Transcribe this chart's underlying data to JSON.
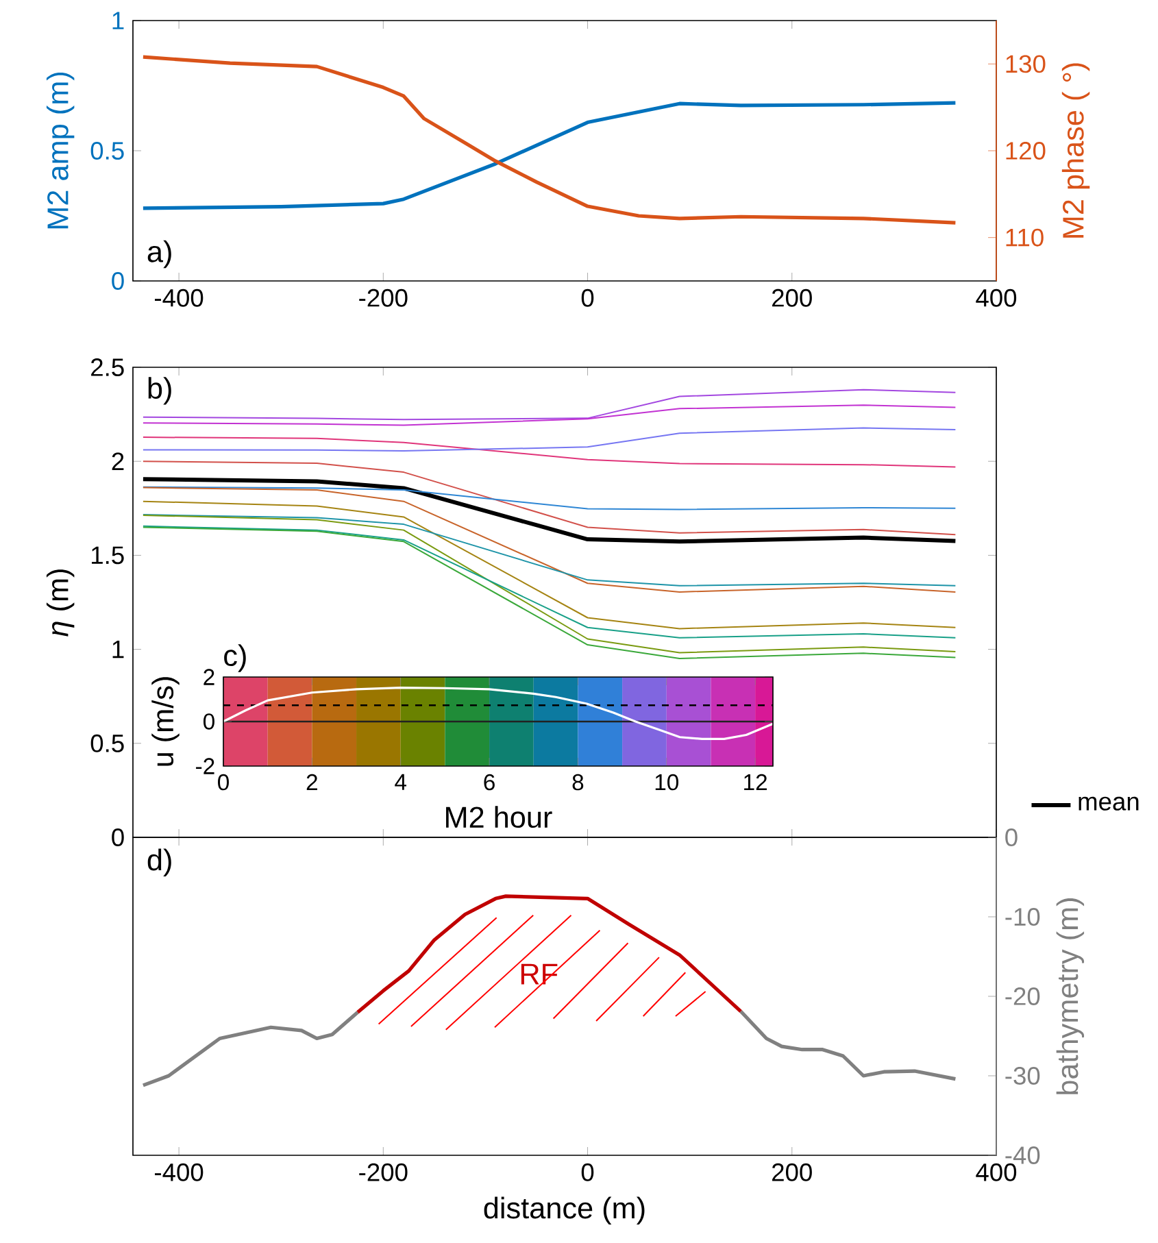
{
  "chart_data": [
    {
      "type": "line",
      "title": "a)",
      "ylabel": "M2 amp (m)",
      "y2label": "M2 phase ( °)",
      "xlim": [
        -445,
        400
      ],
      "xticks": [
        -400,
        -200,
        0,
        200,
        400
      ],
      "ylim": [
        0,
        1
      ],
      "yticks": [
        0,
        0.5,
        1
      ],
      "y2lim": [
        105,
        135
      ],
      "y2ticks": [
        110,
        120,
        130
      ],
      "series": [
        {
          "color": "#0072BD",
          "x": [
            -435,
            -300,
            -200,
            -180,
            -90,
            0,
            90,
            150,
            270,
            360
          ],
          "values": [
            0.279,
            0.285,
            0.297,
            0.314,
            0.45,
            0.609,
            0.681,
            0.674,
            0.677,
            0.684
          ]
        },
        {
          "color": "#D95319",
          "axis": "y2",
          "x": [
            -435,
            -350,
            -265,
            -200,
            -180,
            -160,
            -120,
            -90,
            -50,
            0,
            50,
            90,
            150,
            270,
            360
          ],
          "values": [
            130.8,
            130.1,
            129.7,
            127.3,
            126.3,
            123.7,
            120.9,
            118.8,
            116.4,
            113.6,
            112.5,
            112.2,
            112.4,
            112.2,
            111.7
          ]
        }
      ]
    },
    {
      "type": "line",
      "title": "b)",
      "ylabel": "*η* (m)",
      "xlim": [
        -445,
        400
      ],
      "xticks": [
        -400,
        -200,
        0,
        200,
        400
      ],
      "ylim": [
        0,
        2.5
      ],
      "yticks": [
        0,
        0.5,
        1,
        1.5,
        2,
        2.5
      ],
      "tick_labels": "y",
      "legend": "right",
      "x": [
        -435,
        -265,
        -180,
        0,
        90,
        270,
        360
      ],
      "series": [
        {
          "color": "#A347E0",
          "values": [
            2.235,
            2.228,
            2.222,
            2.229,
            2.345,
            2.381,
            2.366
          ]
        },
        {
          "color": "#C232D2",
          "values": [
            2.204,
            2.198,
            2.192,
            2.226,
            2.28,
            2.299,
            2.287
          ]
        },
        {
          "color": "#E0357A",
          "values": [
            2.128,
            2.122,
            2.1,
            2.009,
            1.988,
            1.982,
            1.97
          ]
        },
        {
          "color": "#7676F2",
          "values": [
            2.061,
            2.06,
            2.055,
            2.076,
            2.149,
            2.177,
            2.168
          ]
        },
        {
          "color": "#D2504A",
          "values": [
            2.0,
            1.99,
            1.942,
            1.649,
            1.619,
            1.637,
            1.61
          ]
        },
        {
          "name": "mean",
          "color": "#000000",
          "values": [
            1.905,
            1.893,
            1.857,
            1.585,
            1.573,
            1.594,
            1.576
          ]
        },
        {
          "color": "#2E86D4",
          "values": [
            1.863,
            1.858,
            1.848,
            1.747,
            1.744,
            1.753,
            1.75
          ]
        },
        {
          "color": "#C8642A",
          "values": [
            1.86,
            1.848,
            1.787,
            1.351,
            1.305,
            1.335,
            1.305
          ]
        },
        {
          "color": "#A58412",
          "values": [
            1.787,
            1.762,
            1.704,
            1.168,
            1.11,
            1.14,
            1.116
          ]
        },
        {
          "color": "#1E94A8",
          "values": [
            1.716,
            1.7,
            1.665,
            1.369,
            1.338,
            1.351,
            1.338
          ]
        },
        {
          "color": "#7A9A10",
          "values": [
            1.713,
            1.689,
            1.634,
            1.055,
            0.982,
            1.012,
            0.988
          ]
        },
        {
          "color": "#18A088",
          "values": [
            1.655,
            1.634,
            1.582,
            1.116,
            1.061,
            1.082,
            1.061
          ]
        },
        {
          "color": "#3AA83A",
          "values": [
            1.649,
            1.628,
            1.573,
            1.024,
            0.951,
            0.979,
            0.957
          ]
        }
      ]
    },
    {
      "type": "line",
      "title": "c)",
      "xlabel": "M2 hour",
      "ylabel": "u (m/s)",
      "xlim": [
        0,
        12.4
      ],
      "xticks": [
        0,
        2,
        4,
        6,
        8,
        10,
        12
      ],
      "ylim": [
        -2,
        2
      ],
      "yticks": [
        -2,
        0,
        2
      ],
      "bands": [
        {
          "axis": "x",
          "from": 0,
          "to": 1,
          "color": "#DD4468"
        },
        {
          "axis": "x",
          "from": 1,
          "to": 2,
          "color": "#D25A38"
        },
        {
          "axis": "x",
          "from": 2,
          "to": 3,
          "color": "#B86A10"
        },
        {
          "axis": "x",
          "from": 3,
          "to": 4,
          "color": "#9A7600"
        },
        {
          "axis": "x",
          "from": 4,
          "to": 5,
          "color": "#6A8200"
        },
        {
          "axis": "x",
          "from": 5,
          "to": 6,
          "color": "#208C38"
        },
        {
          "axis": "x",
          "from": 6,
          "to": 7,
          "color": "#0E8070"
        },
        {
          "axis": "x",
          "from": 7,
          "to": 8,
          "color": "#0C7AA0"
        },
        {
          "axis": "x",
          "from": 8,
          "to": 9,
          "color": "#3080D8"
        },
        {
          "axis": "x",
          "from": 9,
          "to": 10,
          "color": "#8066E0"
        },
        {
          "axis": "x",
          "from": 10,
          "to": 11,
          "color": "#A850D4"
        },
        {
          "axis": "x",
          "from": 11,
          "to": 12,
          "color": "#C830B4"
        },
        {
          "axis": "x",
          "from": 12,
          "to": 12.4,
          "color": "#D81896"
        }
      ],
      "ref_lines": [
        {
          "axis": "y",
          "value": 0,
          "color": "#222222",
          "line_style": "solid"
        },
        {
          "axis": "y",
          "value": 0.73,
          "color": "#000000",
          "line_style": "dashed"
        }
      ],
      "series": [
        {
          "color": "#FFFFFF",
          "x": [
            0,
            0.5,
            1,
            2,
            3,
            4,
            5,
            6,
            7,
            7.5,
            8.2,
            8.8,
            9.3,
            9.8,
            10.3,
            10.8,
            11.3,
            11.8,
            12.4
          ],
          "values": [
            0,
            0.5,
            0.95,
            1.3,
            1.45,
            1.52,
            1.5,
            1.45,
            1.25,
            1.1,
            0.8,
            0.4,
            0,
            -0.35,
            -0.7,
            -0.78,
            -0.78,
            -0.6,
            -0.1
          ]
        }
      ]
    },
    {
      "type": "line",
      "title": "d)",
      "xlabel": "distance (m)",
      "y2label": "bathymetry (m)",
      "xlim": [
        -445,
        400
      ],
      "xticks": [
        -400,
        -200,
        0,
        200,
        400
      ],
      "y2lim": [
        -40,
        0
      ],
      "y2ticks": [
        -40,
        -30,
        -20,
        -10,
        0
      ],
      "annotations": [
        "RF"
      ],
      "series": [
        {
          "color": "#808080",
          "axis": "y2",
          "x": [
            -435,
            -410,
            -360,
            -310,
            -280,
            -265,
            -250,
            -225
          ],
          "values": [
            -31.2,
            -30,
            -25.3,
            -23.9,
            -24.3,
            -25.3,
            -24.8,
            -22.0
          ]
        },
        {
          "color": "#C00000",
          "axis": "y2",
          "x": [
            -225,
            -200,
            -175,
            -150,
            -120,
            -90,
            -80,
            0,
            40,
            90,
            150
          ],
          "values": [
            -22.0,
            -19.3,
            -16.8,
            -12.9,
            -9.7,
            -7.7,
            -7.4,
            -7.7,
            -10.9,
            -14.8,
            -21.9
          ]
        },
        {
          "color": "#808080",
          "axis": "y2",
          "x": [
            150,
            175,
            190,
            210,
            230,
            250,
            270,
            290,
            320,
            360
          ],
          "values": [
            -21.9,
            -25.3,
            -26.3,
            -26.7,
            -26.7,
            -27.5,
            -30,
            -29.5,
            -29.4,
            -30.4
          ]
        }
      ]
    }
  ]
}
